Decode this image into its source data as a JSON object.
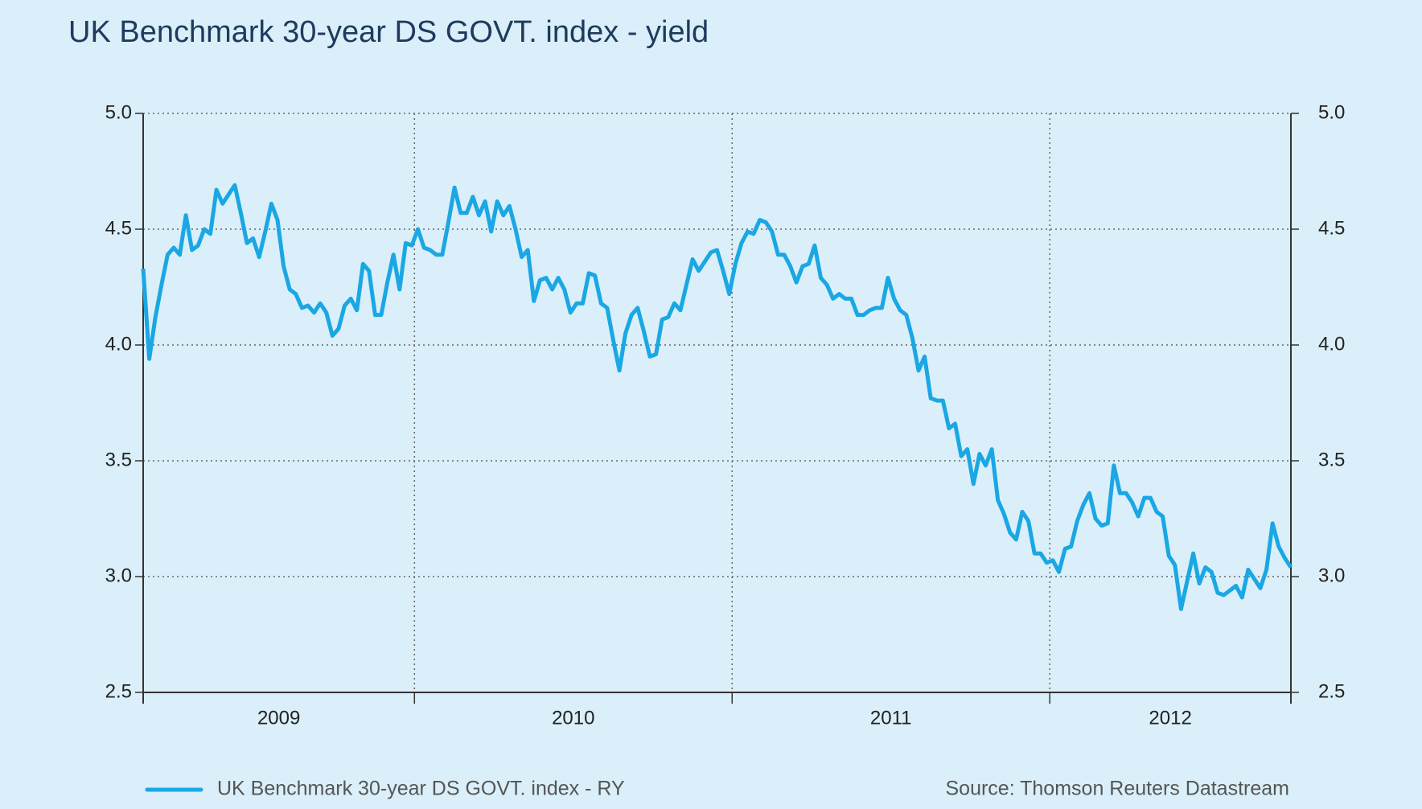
{
  "chart_data": {
    "type": "line",
    "title": "UK Benchmark 30-year DS GOVT. index - yield",
    "source": "Source: Thomson Reuters Datastream",
    "xlim": [
      2009.146,
      2012.759
    ],
    "xticks": [
      2009,
      2010,
      2011,
      2012
    ],
    "ylim": [
      2.5,
      5.0
    ],
    "yticks": [
      {
        "value": 2.5,
        "label": "2.5"
      },
      {
        "value": 3.0,
        "label": "3.0"
      },
      {
        "value": 3.5,
        "label": "3.5"
      },
      {
        "value": 4.0,
        "label": "4.0"
      },
      {
        "value": 4.5,
        "label": "4.5"
      },
      {
        "value": 5.0,
        "label": "5.0"
      }
    ],
    "grid": true,
    "right_axis": true,
    "series": [
      {
        "name": "UK Benchmark 30-year DS GOVT. index - RY",
        "color": "#1aa7e4",
        "values": [
          4.33,
          3.94,
          4.12,
          4.26,
          4.39,
          4.42,
          4.39,
          4.56,
          4.41,
          4.43,
          4.5,
          4.48,
          4.67,
          4.61,
          4.65,
          4.69,
          4.57,
          4.44,
          4.46,
          4.38,
          4.49,
          4.61,
          4.54,
          4.34,
          4.24,
          4.22,
          4.16,
          4.17,
          4.14,
          4.18,
          4.14,
          4.04,
          4.07,
          4.17,
          4.2,
          4.15,
          4.35,
          4.32,
          4.13,
          4.13,
          4.27,
          4.39,
          4.24,
          4.44,
          4.43,
          4.5,
          4.42,
          4.41,
          4.39,
          4.39,
          4.53,
          4.68,
          4.57,
          4.57,
          4.64,
          4.56,
          4.62,
          4.49,
          4.62,
          4.56,
          4.6,
          4.5,
          4.38,
          4.41,
          4.19,
          4.28,
          4.29,
          4.24,
          4.29,
          4.24,
          4.14,
          4.18,
          4.18,
          4.31,
          4.3,
          4.18,
          4.16,
          4.02,
          3.89,
          4.05,
          4.13,
          4.16,
          4.06,
          3.95,
          3.96,
          4.11,
          4.12,
          4.18,
          4.15,
          4.26,
          4.37,
          4.32,
          4.36,
          4.4,
          4.41,
          4.32,
          4.22,
          4.35,
          4.44,
          4.49,
          4.48,
          4.54,
          4.53,
          4.49,
          4.39,
          4.39,
          4.34,
          4.27,
          4.34,
          4.35,
          4.43,
          4.29,
          4.26,
          4.2,
          4.22,
          4.2,
          4.2,
          4.13,
          4.13,
          4.15,
          4.16,
          4.16,
          4.29,
          4.2,
          4.15,
          4.13,
          4.03,
          3.89,
          3.95,
          3.77,
          3.76,
          3.76,
          3.64,
          3.66,
          3.52,
          3.55,
          3.4,
          3.53,
          3.48,
          3.55,
          3.33,
          3.27,
          3.19,
          3.16,
          3.28,
          3.24,
          3.1,
          3.1,
          3.06,
          3.07,
          3.02,
          3.12,
          3.13,
          3.24,
          3.31,
          3.36,
          3.25,
          3.22,
          3.23,
          3.48,
          3.36,
          3.36,
          3.32,
          3.26,
          3.34,
          3.34,
          3.28,
          3.26,
          3.09,
          3.05,
          2.86,
          2.98,
          3.1,
          2.97,
          3.04,
          3.02,
          2.93,
          2.92,
          2.94,
          2.96,
          2.91,
          3.03,
          2.99,
          2.95,
          3.03,
          3.23,
          3.13,
          3.08,
          3.04
        ]
      }
    ]
  }
}
